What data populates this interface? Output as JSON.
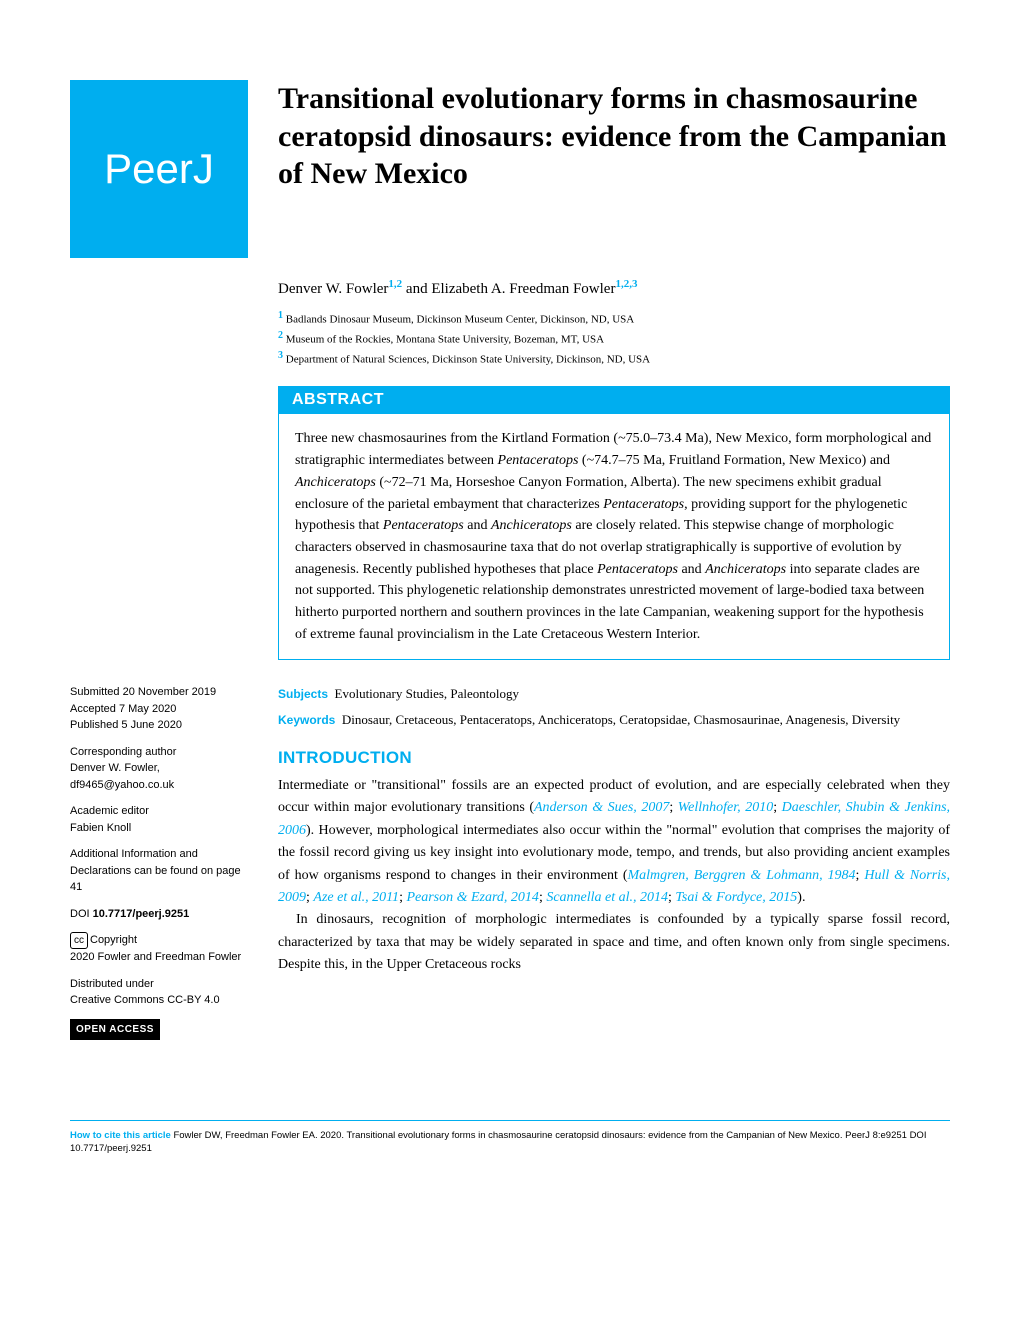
{
  "logo_text": "PeerJ",
  "title": "Transitional evolutionary forms in chasmosaurine ceratopsid dinosaurs: evidence from the Campanian of New Mexico",
  "authors": {
    "a1": {
      "name": "Denver W. Fowler",
      "sup": "1,2"
    },
    "and": " and ",
    "a2": {
      "name": "Elizabeth A. Freedman Fowler",
      "sup": "1,2,3"
    }
  },
  "affiliations": {
    "1": "Badlands Dinosaur Museum, Dickinson Museum Center, Dickinson, ND, USA",
    "2": "Museum of the Rockies, Montana State University, Bozeman, MT, USA",
    "3": "Department of Natural Sciences, Dickinson State University, Dickinson, ND, USA"
  },
  "abstract_heading": "ABSTRACT",
  "abstract": {
    "p1a": "Three new chasmosaurines from the Kirtland Formation (~75.0–73.4 Ma), New Mexico, form morphological and stratigraphic intermediates between ",
    "p1b": "Pentaceratops",
    "p1c": " (~74.7–75 Ma, Fruitland Formation, New Mexico) and ",
    "p1d": "Anchiceratops",
    "p1e": " (~72–71 Ma, Horseshoe Canyon Formation, Alberta). The new specimens exhibit gradual enclosure of the parietal embayment that characterizes ",
    "p1f": "Pentaceratops",
    "p1g": ", providing support for the phylogenetic hypothesis that ",
    "p1h": "Pentaceratops",
    "p1i": " and ",
    "p1j": "Anchiceratops",
    "p1k": " are closely related. This stepwise change of morphologic characters observed in chasmosaurine taxa that do not overlap stratigraphically is supportive of evolution by anagenesis. Recently published hypotheses that place ",
    "p1l": "Pentaceratops",
    "p1m": " and ",
    "p1n": "Anchiceratops",
    "p1o": " into separate clades are not supported. This phylogenetic relationship demonstrates unrestricted movement of large-bodied taxa between hitherto purported northern and southern provinces in the late Campanian, weakening support for the hypothesis of extreme faunal provincialism in the Late Cretaceous Western Interior."
  },
  "subjects_label": "Subjects",
  "subjects": "Evolutionary Studies, Paleontology",
  "keywords_label": "Keywords",
  "keywords": "Dinosaur, Cretaceous, Pentaceratops, Anchiceratops, Ceratopsidae, Chasmosaurinae, Anagenesis, Diversity",
  "intro_heading": "INTRODUCTION",
  "intro": {
    "p1a": "Intermediate or \"transitional\" fossils are an expected product of evolution, and are especially celebrated when they occur within major evolutionary transitions (",
    "r1": "Anderson & Sues, 2007",
    "p1b": "; ",
    "r2": "Wellnhofer, 2010",
    "p1c": "; ",
    "r3": "Daeschler, Shubin & Jenkins, 2006",
    "p1d": "). However, morphological intermediates also occur within the \"normal\" evolution that comprises the majority of the fossil record giving us key insight into evolutionary mode, tempo, and trends, but also providing ancient examples of how organisms respond to changes in their environment (",
    "r4": "Malmgren, Berggren & Lohmann, 1984",
    "p1e": "; ",
    "r5": "Hull & Norris, 2009",
    "p1f": "; ",
    "r6": "Aze et al., 2011",
    "p1g": "; ",
    "r7": "Pearson & Ezard, 2014",
    "p1h": "; ",
    "r8": "Scannella et al., 2014",
    "p1i": "; ",
    "r9": "Tsai & Fordyce, 2015",
    "p1j": ").",
    "p2": "In dinosaurs, recognition of morphologic intermediates is confounded by a typically sparse fossil record, characterized by taxa that may be widely separated in space and time, and often known only from single specimens. Despite this, in the Upper Cretaceous rocks"
  },
  "sidebar": {
    "submitted_label": "Submitted",
    "submitted": "20 November 2019",
    "accepted_label": "Accepted",
    "accepted": "7 May 2020",
    "published_label": "Published",
    "published": "5 June 2020",
    "corresponding_label": "Corresponding author",
    "corresponding_name": "Denver W. Fowler,",
    "corresponding_email": "df9465@yahoo.co.uk",
    "editor_label": "Academic editor",
    "editor": "Fabien Knoll",
    "additional": "Additional Information and Declarations can be found on page 41",
    "doi_label": "DOI",
    "doi": "10.7717/peerj.9251",
    "copyright_label": "Copyright",
    "copyright": "2020 Fowler and Freedman Fowler",
    "distributed_label": "Distributed under",
    "license": "Creative Commons CC-BY 4.0",
    "open_access": "OPEN ACCESS"
  },
  "footer": {
    "cite_label": "How to cite this article",
    "citation_a": " Fowler DW, Freedman Fowler EA. 2020. Transitional evolutionary forms in chasmosaurine ceratopsid dinosaurs: evidence from the Campanian of New Mexico. ",
    "citation_b": "PeerJ",
    "citation_c": " 8:e9251 ",
    "citation_d": "DOI 10.7717/peerj.9251"
  },
  "colors": {
    "accent": "#00aeef"
  }
}
